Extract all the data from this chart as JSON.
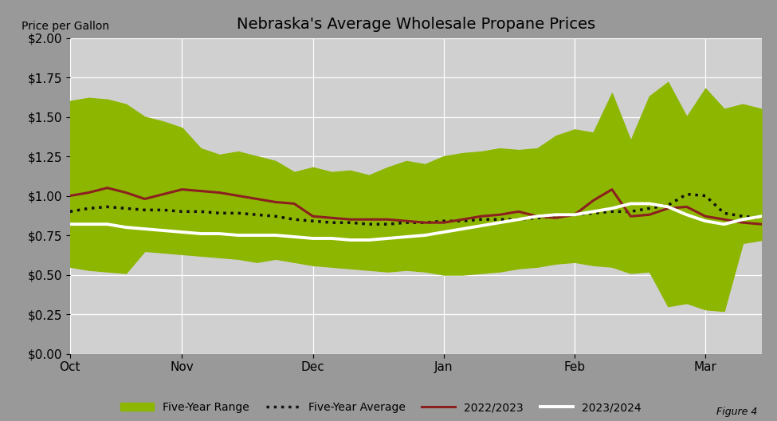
{
  "title": "Nebraska's Average Wholesale Propane Prices",
  "ylabel": "Price per Gallon",
  "background_color": "#999999",
  "plot_bg_color": "#d0d0d0",
  "x_labels": [
    "Oct",
    "Nov",
    "Dec",
    "Jan",
    "Feb",
    "Mar"
  ],
  "x_tick_positions": [
    0,
    6,
    13,
    20,
    27,
    34
  ],
  "ylim": [
    0.0,
    2.0
  ],
  "yticks": [
    0.0,
    0.25,
    0.5,
    0.75,
    1.0,
    1.25,
    1.5,
    1.75,
    2.0
  ],
  "five_year_high": [
    1.6,
    1.62,
    1.61,
    1.58,
    1.5,
    1.47,
    1.43,
    1.3,
    1.26,
    1.28,
    1.25,
    1.22,
    1.15,
    1.18,
    1.15,
    1.16,
    1.13,
    1.18,
    1.22,
    1.2,
    1.25,
    1.27,
    1.28,
    1.3,
    1.29,
    1.3,
    1.38,
    1.42,
    1.4,
    1.65,
    1.35,
    1.63,
    1.72,
    1.5,
    1.68,
    1.55,
    1.58,
    1.55
  ],
  "five_year_low": [
    0.55,
    0.53,
    0.52,
    0.51,
    0.65,
    0.64,
    0.63,
    0.62,
    0.61,
    0.6,
    0.58,
    0.6,
    0.58,
    0.56,
    0.55,
    0.54,
    0.53,
    0.52,
    0.53,
    0.52,
    0.5,
    0.5,
    0.51,
    0.52,
    0.54,
    0.55,
    0.57,
    0.58,
    0.56,
    0.55,
    0.51,
    0.52,
    0.3,
    0.32,
    0.28,
    0.27,
    0.7,
    0.72
  ],
  "five_year_avg": [
    0.9,
    0.92,
    0.93,
    0.92,
    0.91,
    0.91,
    0.9,
    0.9,
    0.89,
    0.89,
    0.88,
    0.87,
    0.85,
    0.84,
    0.83,
    0.83,
    0.82,
    0.82,
    0.83,
    0.83,
    0.84,
    0.84,
    0.85,
    0.85,
    0.85,
    0.86,
    0.87,
    0.88,
    0.89,
    0.9,
    0.9,
    0.92,
    0.94,
    1.01,
    1.0,
    0.89,
    0.87,
    0.86
  ],
  "season_2022": [
    1.0,
    1.02,
    1.05,
    1.02,
    0.98,
    1.01,
    1.04,
    1.03,
    1.02,
    1.0,
    0.98,
    0.96,
    0.95,
    0.87,
    0.86,
    0.85,
    0.85,
    0.85,
    0.84,
    0.83,
    0.83,
    0.85,
    0.87,
    0.88,
    0.9,
    0.87,
    0.86,
    0.88,
    0.97,
    1.04,
    0.87,
    0.88,
    0.92,
    0.93,
    0.87,
    0.85,
    0.83,
    0.82
  ],
  "season_2023": [
    0.82,
    0.82,
    0.82,
    0.8,
    0.79,
    0.78,
    0.77,
    0.76,
    0.76,
    0.75,
    0.75,
    0.75,
    0.74,
    0.73,
    0.73,
    0.72,
    0.72,
    0.73,
    0.74,
    0.75,
    0.77,
    0.79,
    0.81,
    0.83,
    0.85,
    0.87,
    0.88,
    0.88,
    0.9,
    0.92,
    0.95,
    0.95,
    0.93,
    0.88,
    0.84,
    0.82,
    0.85,
    0.87
  ],
  "range_color": "#8db600",
  "range_alpha": 1.0,
  "avg_color": "#111111",
  "season2022_color": "#8b2020",
  "season2023_color": "#ffffff",
  "fig_label": "Figure 4",
  "title_fontsize": 14,
  "tick_fontsize": 11
}
